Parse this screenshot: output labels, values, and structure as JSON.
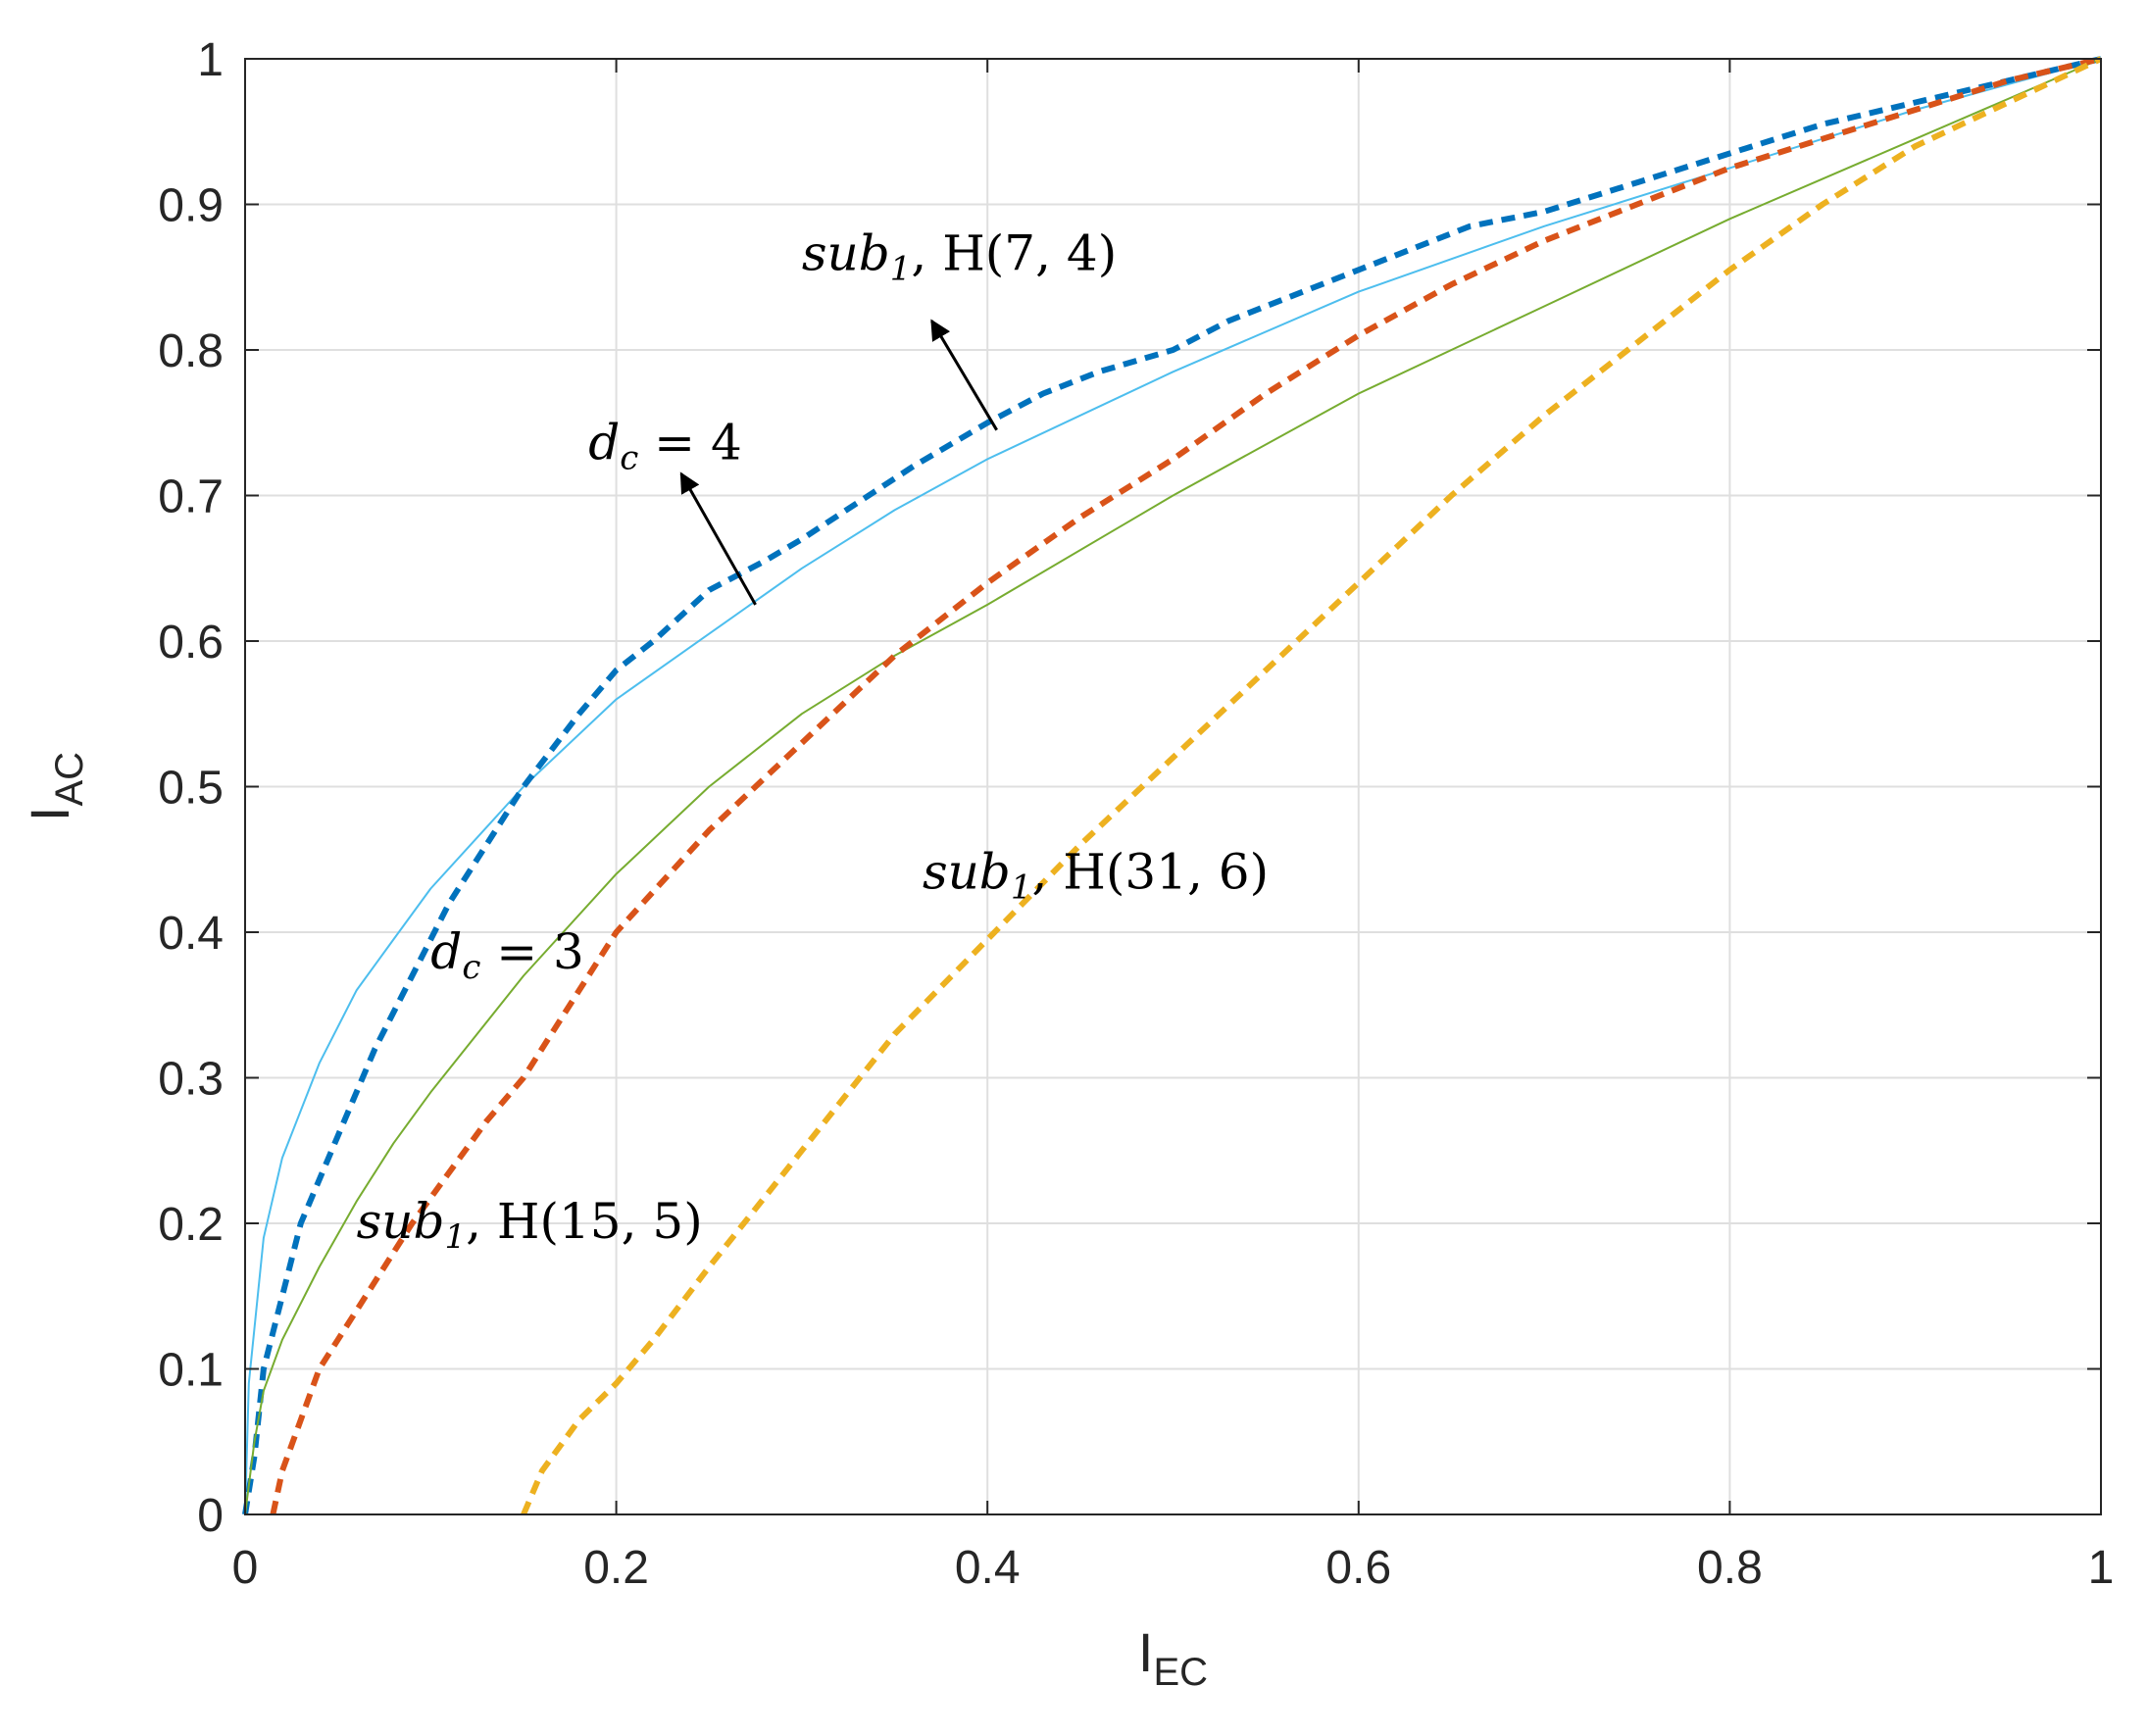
{
  "chart_data": {
    "type": "line",
    "title": "",
    "xlabel": {
      "main": "I",
      "sub": "EC"
    },
    "ylabel": {
      "main": "I",
      "sub": "AC"
    },
    "xlim": [
      0,
      1
    ],
    "ylim": [
      0,
      1
    ],
    "grid": true,
    "xticks": [
      0,
      0.2,
      0.4,
      0.6,
      0.8,
      1
    ],
    "yticks": [
      0,
      0.1,
      0.2,
      0.3,
      0.4,
      0.5,
      0.6,
      0.7,
      0.8,
      0.9,
      1
    ],
    "xtick_labels": [
      "0",
      "0.2",
      "0.4",
      "0.6",
      "0.8",
      "1"
    ],
    "ytick_labels": [
      "0",
      "0.1",
      "0.2",
      "0.3",
      "0.4",
      "0.5",
      "0.6",
      "0.7",
      "0.8",
      "0.9",
      "1"
    ],
    "series": [
      {
        "name": "d_c = 4",
        "style": "solid",
        "color": "#4DBEEE",
        "x": [
          0,
          0.002,
          0.01,
          0.02,
          0.04,
          0.06,
          0.08,
          0.1,
          0.15,
          0.2,
          0.25,
          0.3,
          0.35,
          0.4,
          0.5,
          0.6,
          0.7,
          0.8,
          0.9,
          1.0
        ],
        "y": [
          0,
          0.09,
          0.19,
          0.245,
          0.31,
          0.36,
          0.395,
          0.43,
          0.5,
          0.56,
          0.605,
          0.65,
          0.69,
          0.725,
          0.785,
          0.84,
          0.885,
          0.925,
          0.965,
          1.0
        ]
      },
      {
        "name": "sub_1, H(7,4)",
        "style": "dashed",
        "color": "#0072BD",
        "x": [
          0,
          0.005,
          0.01,
          0.02,
          0.03,
          0.05,
          0.07,
          0.09,
          0.11,
          0.13,
          0.15,
          0.18,
          0.2,
          0.22,
          0.25,
          0.28,
          0.3,
          0.33,
          0.36,
          0.4,
          0.43,
          0.46,
          0.5,
          0.53,
          0.56,
          0.6,
          0.63,
          0.66,
          0.7,
          0.75,
          0.8,
          0.85,
          0.9,
          0.95,
          1.0
        ],
        "y": [
          0,
          0.04,
          0.1,
          0.15,
          0.2,
          0.26,
          0.32,
          0.37,
          0.42,
          0.46,
          0.5,
          0.55,
          0.58,
          0.6,
          0.635,
          0.655,
          0.67,
          0.695,
          0.72,
          0.75,
          0.77,
          0.785,
          0.8,
          0.82,
          0.835,
          0.855,
          0.87,
          0.885,
          0.895,
          0.915,
          0.935,
          0.955,
          0.97,
          0.985,
          1.0
        ]
      },
      {
        "name": "d_c = 3",
        "style": "solid",
        "color": "#77AC30",
        "x": [
          0,
          0.005,
          0.01,
          0.02,
          0.04,
          0.06,
          0.08,
          0.1,
          0.15,
          0.2,
          0.25,
          0.3,
          0.35,
          0.4,
          0.5,
          0.6,
          0.7,
          0.8,
          0.9,
          1.0
        ],
        "y": [
          0,
          0.05,
          0.085,
          0.12,
          0.17,
          0.215,
          0.255,
          0.29,
          0.37,
          0.44,
          0.5,
          0.55,
          0.59,
          0.625,
          0.7,
          0.77,
          0.83,
          0.89,
          0.945,
          1.0
        ]
      },
      {
        "name": "sub_1, H(15,5)",
        "style": "dashed",
        "color": "#D95319",
        "x": [
          0.015,
          0.02,
          0.03,
          0.04,
          0.05,
          0.07,
          0.09,
          0.11,
          0.13,
          0.15,
          0.18,
          0.2,
          0.25,
          0.3,
          0.35,
          0.4,
          0.45,
          0.5,
          0.55,
          0.6,
          0.65,
          0.7,
          0.75,
          0.8,
          0.85,
          0.9,
          0.95,
          1.0
        ],
        "y": [
          0,
          0.03,
          0.065,
          0.1,
          0.12,
          0.16,
          0.2,
          0.235,
          0.27,
          0.3,
          0.36,
          0.4,
          0.47,
          0.53,
          0.59,
          0.64,
          0.685,
          0.725,
          0.77,
          0.81,
          0.845,
          0.875,
          0.9,
          0.925,
          0.945,
          0.965,
          0.985,
          1.0
        ]
      },
      {
        "name": "sub_1, H(31,6)",
        "style": "dashed",
        "color": "#EDB120",
        "x": [
          0.15,
          0.16,
          0.18,
          0.2,
          0.22,
          0.25,
          0.3,
          0.35,
          0.4,
          0.45,
          0.5,
          0.55,
          0.6,
          0.65,
          0.7,
          0.75,
          0.8,
          0.85,
          0.9,
          0.95,
          1.0
        ],
        "y": [
          0,
          0.03,
          0.065,
          0.09,
          0.12,
          0.17,
          0.25,
          0.33,
          0.395,
          0.46,
          0.52,
          0.58,
          0.64,
          0.7,
          0.755,
          0.805,
          0.855,
          0.9,
          0.94,
          0.97,
          1.0
        ]
      }
    ],
    "annotations": [
      {
        "name": "sub1-h74",
        "base": "sub",
        "sub": "1",
        "rest": ", H(7, 4)",
        "x": 0.3,
        "y": 0.855,
        "arrow_from": [
          0.405,
          0.745
        ],
        "arrow_to": [
          0.37,
          0.82
        ]
      },
      {
        "name": "dc-4",
        "base": "d",
        "sub": "c",
        "rest": " = 4",
        "x": 0.185,
        "y": 0.725,
        "arrow_from": [
          0.275,
          0.625
        ],
        "arrow_to": [
          0.235,
          0.715
        ]
      },
      {
        "name": "dc-3",
        "base": "d",
        "sub": "c",
        "rest": " = 3",
        "x": 0.1,
        "y": 0.375
      },
      {
        "name": "sub1-h155",
        "base": "sub",
        "sub": "1",
        "rest": ", H(15, 5)",
        "x": 0.06,
        "y": 0.19
      },
      {
        "name": "sub1-h316",
        "base": "sub",
        "sub": "1",
        "rest": ", H(31, 6)",
        "x": 0.365,
        "y": 0.43
      }
    ]
  }
}
